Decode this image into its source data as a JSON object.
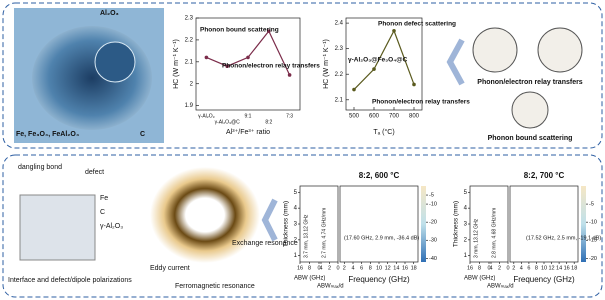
{
  "top": {
    "image_labels": [
      "Al₂O₃",
      "Fe, Fe₃O₄, FeAl₂O₄",
      "C"
    ],
    "schematic_labels": [
      "Phonon/electron relay transfers",
      "Phonon bound scattering"
    ]
  },
  "chart_data": [
    {
      "type": "line",
      "y_label": "HC (W m⁻¹ K⁻¹)",
      "x_label": "Al³⁺/Fe³⁺ ratio",
      "categories": [
        "γ-Al₂O₃",
        "γ-Al₂O₃@C",
        "9:1",
        "8:2",
        "7:3"
      ],
      "values": [
        2.12,
        2.08,
        2.12,
        2.24,
        2.04
      ],
      "color": "#7b2c4a",
      "ylim": [
        1.88,
        2.3
      ],
      "yticks": [
        1.9,
        2.0,
        2.1,
        2.2,
        2.3
      ],
      "annotations": [
        "Phonon bound scattering",
        "Phonon/electron relay transfers"
      ]
    },
    {
      "type": "line",
      "y_label": "HC (W m⁻¹ K⁻¹)",
      "x_label": "Tₐ (°C)",
      "x": [
        500,
        600,
        700,
        800
      ],
      "values": [
        2.14,
        2.22,
        2.37,
        2.16
      ],
      "color": "#5a5a1e",
      "xlim": [
        460,
        840
      ],
      "xticks": [
        500,
        600,
        700,
        800
      ],
      "ylim": [
        2.06,
        2.42
      ],
      "yticks": [
        2.1,
        2.2,
        2.3,
        2.4
      ],
      "annotations": [
        "Phonon defect scattering",
        "γ-Al₂O₃@Fe₃O₄@C",
        "Phonon/electron relay transfers"
      ]
    }
  ],
  "bottom": {
    "schematic_labels": [
      "dangling bond",
      "defect",
      "Fe",
      "C",
      "γ-Al₂O₃",
      "Interface and defect/dipole polarizations"
    ],
    "ring_labels": [
      "Eddy current",
      "Ferromagnetic resonance",
      "Exchange resonance"
    ],
    "panels": [
      {
        "title": "8:2, 600 °C",
        "thickness_label": "Thickness (mm)",
        "thickness_ticks": [
          1,
          2,
          3,
          4,
          5
        ],
        "abw_label": "ABW (GHz)",
        "abw_ticks": [
          16,
          8,
          0
        ],
        "ratio_label": "ABWₘₐₓ/d",
        "ratio_ticks": [
          4,
          2,
          0
        ],
        "freq_label": "Frequency (GHz)",
        "freq_ticks": [
          2,
          4,
          6,
          8,
          10,
          12,
          14,
          16,
          18
        ],
        "cbar_ticks": [
          -5,
          -10,
          -20,
          -30,
          -40
        ],
        "annotations": [
          "3.7 mm, 13.12 GHz",
          "2.7 mm, 4.74 GHz/mm",
          "(17.60 GHz, 2.9 mm, -36.4 dB)"
        ]
      },
      {
        "title": "8:2, 700 °C",
        "thickness_label": "Thickness (mm)",
        "thickness_ticks": [
          1,
          2,
          3,
          4,
          5
        ],
        "abw_label": "ABW (GHz)",
        "abw_ticks": [
          16,
          8,
          0
        ],
        "ratio_label": "ABWₘₐₓ/d",
        "ratio_ticks": [
          4,
          2,
          0
        ],
        "freq_label": "Frequency (GHz)",
        "freq_ticks": [
          2,
          4,
          6,
          8,
          10,
          12,
          14,
          16,
          18
        ],
        "cbar_ticks": [
          -5,
          -10,
          -15,
          -20
        ],
        "annotations": [
          "3 mm, 13.12 GHz",
          "2.8 mm, 4.68 GHz/mm",
          "(17.52 GHz, 2.5 mm, -19.1 dB)"
        ]
      }
    ]
  }
}
